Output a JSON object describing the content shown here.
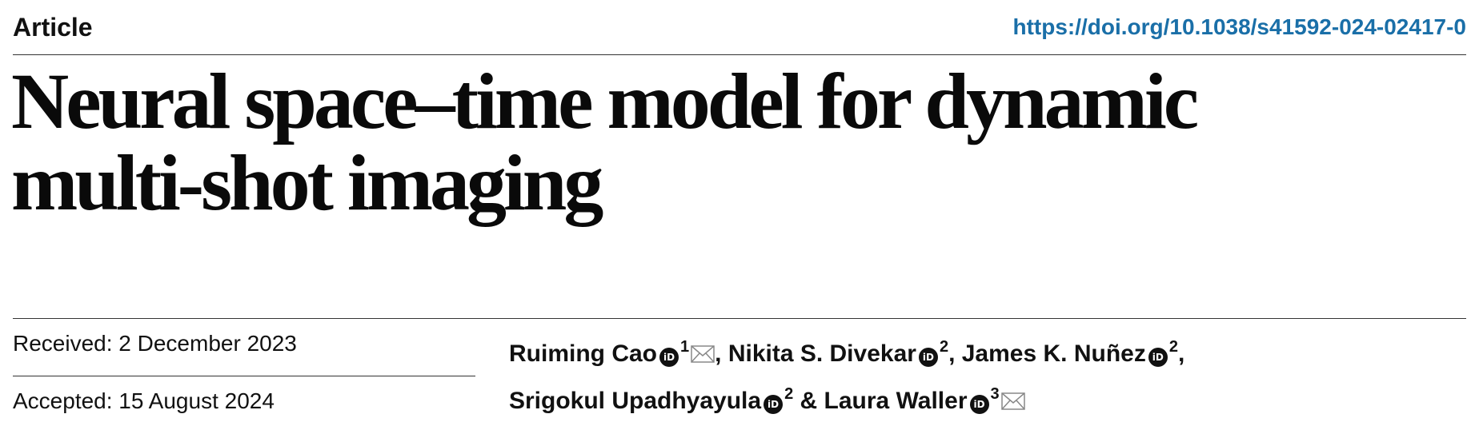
{
  "header": {
    "article_type": "Article",
    "doi": "https://doi.org/10.1038/s41592-024-02417-0"
  },
  "title": {
    "line1": "Neural space–time model for dynamic",
    "line2": "multi-shot imaging"
  },
  "dates": {
    "received": "Received: 2 December 2023",
    "accepted": "Accepted: 15 August 2024"
  },
  "authors": [
    {
      "name": "Ruiming Cao",
      "affiliation": "1",
      "corresponding": true,
      "separator": ","
    },
    {
      "name": "Nikita S. Divekar",
      "affiliation": "2",
      "corresponding": false,
      "separator": ","
    },
    {
      "name": "James K. Nuñez",
      "affiliation": "2",
      "corresponding": false,
      "separator": ","
    },
    {
      "name": "Srigokul Upadhyayula",
      "affiliation": "2",
      "corresponding": false,
      "separator": " &"
    },
    {
      "name": "Laura Waller",
      "affiliation": "3",
      "corresponding": true,
      "separator": ""
    }
  ],
  "icons": {
    "orcid": "orcid-icon",
    "orcid_glyph": "iD",
    "mail": "envelope-icon"
  },
  "colors": {
    "doi_link": "#1a6fa8",
    "text": "#111111"
  }
}
